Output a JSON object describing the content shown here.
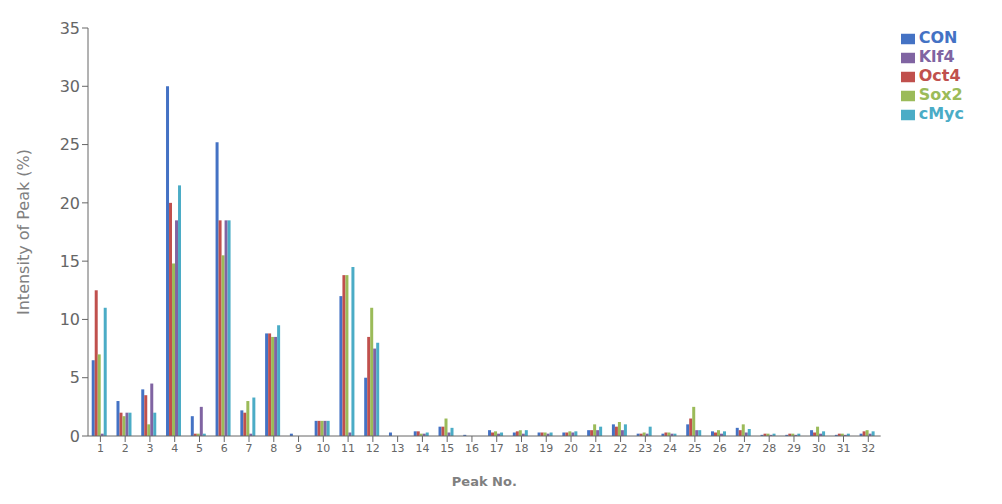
{
  "chart_data": {
    "type": "bar",
    "xlabel": "Peak No.",
    "ylabel": "Intensity of Peak (%)",
    "categories": [
      "1",
      "2",
      "3",
      "4",
      "5",
      "6",
      "7",
      "8",
      "9",
      "10",
      "11",
      "12",
      "13",
      "14",
      "15",
      "16",
      "17",
      "18",
      "19",
      "20",
      "21",
      "22",
      "23",
      "24",
      "25",
      "26",
      "27",
      "28",
      "29",
      "30",
      "31",
      "32"
    ],
    "series": [
      {
        "name": "CON",
        "color": "#4472C4",
        "values": [
          6.5,
          3.0,
          4.0,
          30.0,
          1.7,
          25.2,
          2.2,
          8.8,
          0.2,
          1.3,
          12.0,
          5.0,
          0.3,
          0.4,
          0.8,
          0.1,
          0.5,
          0.3,
          0.3,
          0.3,
          0.5,
          1.0,
          0.2,
          0.2,
          1.0,
          0.4,
          0.7,
          0.1,
          0.1,
          0.5,
          0.1,
          0.2
        ]
      },
      {
        "name": "Oct4",
        "color": "#C0504D",
        "values": [
          12.5,
          2.0,
          3.5,
          20.0,
          0.2,
          18.5,
          2.0,
          8.8,
          0.0,
          1.3,
          13.8,
          8.5,
          0.0,
          0.4,
          0.8,
          0.0,
          0.3,
          0.4,
          0.3,
          0.3,
          0.5,
          0.8,
          0.2,
          0.3,
          1.5,
          0.3,
          0.5,
          0.2,
          0.2,
          0.3,
          0.2,
          0.4
        ]
      },
      {
        "name": "Sox2",
        "color": "#9BBB59",
        "values": [
          7.0,
          1.7,
          1.0,
          14.8,
          0.2,
          15.5,
          3.0,
          8.5,
          0.0,
          1.3,
          13.8,
          11.0,
          0.0,
          0.2,
          1.5,
          0.0,
          0.4,
          0.5,
          0.3,
          0.4,
          1.0,
          1.2,
          0.3,
          0.3,
          2.5,
          0.5,
          1.0,
          0.2,
          0.2,
          0.8,
          0.2,
          0.5
        ]
      },
      {
        "name": "Klf4",
        "color": "#8064A2",
        "values": [
          0.2,
          2.0,
          4.5,
          18.5,
          2.5,
          18.5,
          0.2,
          8.5,
          0.0,
          1.3,
          0.3,
          7.5,
          0.0,
          0.2,
          0.3,
          0.0,
          0.2,
          0.2,
          0.2,
          0.3,
          0.5,
          0.5,
          0.2,
          0.2,
          0.5,
          0.2,
          0.3,
          0.1,
          0.1,
          0.2,
          0.1,
          0.2
        ]
      },
      {
        "name": "cMyc",
        "color": "#4BACC6",
        "values": [
          11.0,
          2.0,
          2.0,
          21.5,
          0.2,
          18.5,
          3.3,
          9.5,
          0.0,
          1.3,
          14.5,
          8.0,
          0.0,
          0.3,
          0.7,
          0.0,
          0.3,
          0.5,
          0.3,
          0.4,
          0.8,
          1.0,
          0.8,
          0.2,
          0.5,
          0.4,
          0.6,
          0.2,
          0.2,
          0.4,
          0.2,
          0.4
        ]
      }
    ],
    "ylim": [
      0,
      35
    ],
    "yticks": [
      0,
      5,
      10,
      15,
      20,
      25,
      30,
      35
    ],
    "grid": false,
    "legend": "right"
  }
}
